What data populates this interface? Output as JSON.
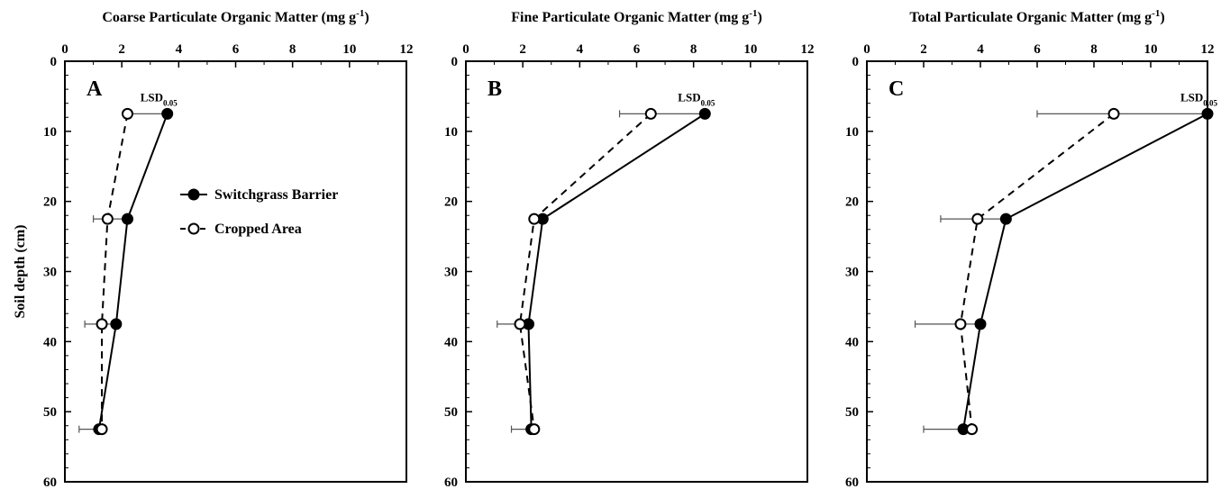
{
  "chart_data": [
    {
      "type": "line",
      "panel_label": "A",
      "title": "Coarse Particulate Organic Matter (mg g-1)",
      "title_main": "Coarse Particulate Organic Matter (mg g",
      "title_sup": "-1",
      "title_end": ")",
      "xlim": [
        0,
        12
      ],
      "xticks": [
        "0",
        "2",
        "4",
        "6",
        "8",
        "10",
        "12"
      ],
      "ylim": [
        0,
        60
      ],
      "yticks": [
        "0",
        "10",
        "20",
        "30",
        "40",
        "50",
        "60"
      ],
      "ylabel": "Soil depth (cm)",
      "lsd": {
        "label": "LSD",
        "sub": "0.05"
      },
      "series": [
        {
          "name": "Switchgrass Barrier",
          "marker": "filled",
          "line": "solid",
          "points": [
            {
              "x": 3.6,
              "y": 7.5
            },
            {
              "x": 2.2,
              "y": 22.5
            },
            {
              "x": 1.8,
              "y": 37.5
            },
            {
              "x": 1.2,
              "y": 52.5
            }
          ]
        },
        {
          "name": "Cropped Area",
          "marker": "open",
          "line": "dashed",
          "points": [
            {
              "x": 2.2,
              "y": 7.5
            },
            {
              "x": 1.5,
              "y": 22.5
            },
            {
              "x": 1.3,
              "y": 37.5
            },
            {
              "x": 1.3,
              "y": 52.5
            }
          ]
        }
      ],
      "lsd_bars": [
        {
          "y": 7.5,
          "x0": 2.2,
          "x1": 3.6
        },
        {
          "y": 22.5,
          "x0": 1.0,
          "x1": 2.2
        },
        {
          "y": 37.5,
          "x0": 0.7,
          "x1": 1.8
        },
        {
          "y": 52.5,
          "x0": 0.5,
          "x1": 1.3
        }
      ]
    },
    {
      "type": "line",
      "panel_label": "B",
      "title": "Fine Particulate Organic Matter (mg g-1)",
      "title_main": "Fine Particulate Organic Matter (mg g",
      "title_sup": "-1",
      "title_end": ")",
      "xlim": [
        0,
        12
      ],
      "xticks": [
        "0",
        "2",
        "4",
        "6",
        "8",
        "10",
        "12"
      ],
      "ylim": [
        0,
        60
      ],
      "yticks": [
        "0",
        "10",
        "20",
        "30",
        "40",
        "50",
        "60"
      ],
      "lsd": {
        "label": "LSD",
        "sub": "0.05"
      },
      "series": [
        {
          "name": "Switchgrass Barrier",
          "marker": "filled",
          "line": "solid",
          "points": [
            {
              "x": 8.4,
              "y": 7.5
            },
            {
              "x": 2.7,
              "y": 22.5
            },
            {
              "x": 2.2,
              "y": 37.5
            },
            {
              "x": 2.3,
              "y": 52.5
            }
          ]
        },
        {
          "name": "Cropped Area",
          "marker": "open",
          "line": "dashed",
          "points": [
            {
              "x": 6.5,
              "y": 7.5
            },
            {
              "x": 2.4,
              "y": 22.5
            },
            {
              "x": 1.9,
              "y": 37.5
            },
            {
              "x": 2.4,
              "y": 52.5
            }
          ]
        }
      ],
      "lsd_bars": [
        {
          "y": 7.5,
          "x0": 5.4,
          "x1": 8.4
        },
        {
          "y": 22.5,
          "x0": 2.4,
          "x1": 2.7
        },
        {
          "y": 37.5,
          "x0": 1.1,
          "x1": 2.2
        },
        {
          "y": 52.5,
          "x0": 1.6,
          "x1": 2.4
        }
      ]
    },
    {
      "type": "line",
      "panel_label": "C",
      "title": "Total  Particulate Organic Matter (mg g-1)",
      "title_main": "Total  Particulate Organic Matter (mg g",
      "title_sup": "-1",
      "title_end": ")",
      "xlim": [
        0,
        12
      ],
      "xticks": [
        "0",
        "2",
        "4",
        "6",
        "8",
        "10",
        "12"
      ],
      "ylim": [
        0,
        60
      ],
      "yticks": [
        "0",
        "10",
        "20",
        "30",
        "40",
        "50",
        "60"
      ],
      "lsd": {
        "label": "LSD",
        "sub": "0.05"
      },
      "series": [
        {
          "name": "Switchgrass Barrier",
          "marker": "filled",
          "line": "solid",
          "points": [
            {
              "x": 12.0,
              "y": 7.5
            },
            {
              "x": 4.9,
              "y": 22.5
            },
            {
              "x": 4.0,
              "y": 37.5
            },
            {
              "x": 3.4,
              "y": 52.5
            }
          ]
        },
        {
          "name": "Cropped Area",
          "marker": "open",
          "line": "dashed",
          "points": [
            {
              "x": 8.7,
              "y": 7.5
            },
            {
              "x": 3.9,
              "y": 22.5
            },
            {
              "x": 3.3,
              "y": 37.5
            },
            {
              "x": 3.7,
              "y": 52.5
            }
          ]
        }
      ],
      "lsd_bars": [
        {
          "y": 7.5,
          "x0": 6.0,
          "x1": 12.0
        },
        {
          "y": 22.5,
          "x0": 2.6,
          "x1": 4.9
        },
        {
          "y": 37.5,
          "x0": 1.7,
          "x1": 4.0
        },
        {
          "y": 52.5,
          "x0": 2.0,
          "x1": 3.7
        }
      ]
    }
  ],
  "legend": {
    "items": [
      {
        "label": "Switchgrass Barrier",
        "marker": "filled",
        "line": "solid"
      },
      {
        "label": "Cropped Area",
        "marker": "open",
        "line": "dashed"
      }
    ],
    "placement": "inside panel A, center-right"
  }
}
